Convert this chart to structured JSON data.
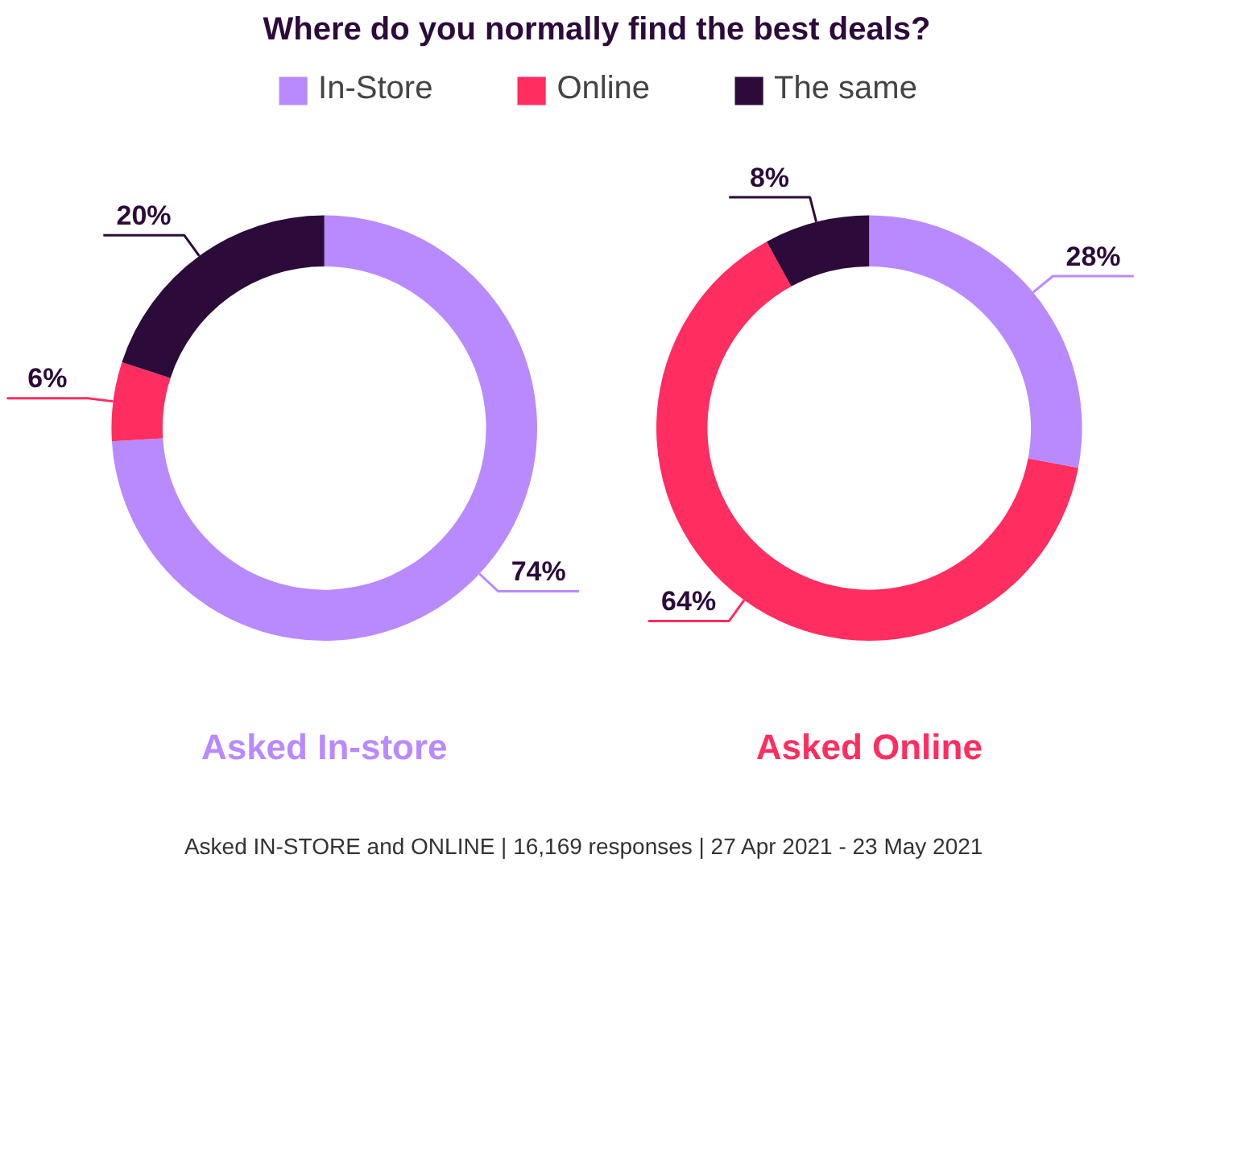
{
  "chart_data": [
    {
      "type": "donut",
      "title": "Where do you normally find the best deals?",
      "xlabel": "Asked In-store",
      "categories": [
        "In-Store",
        "Online",
        "The same"
      ],
      "values": [
        74,
        6,
        20
      ],
      "colors": [
        "#b98afe",
        "#ff2d60",
        "#2c0b3a"
      ],
      "value_labels": [
        "74%",
        "6%",
        "20%"
      ],
      "legend": "top",
      "annotations": [
        "Asked IN-STORE and ONLINE  |  16,169 responses  |  27 Apr 2021 - 23 May 2021"
      ]
    },
    {
      "type": "donut",
      "xlabel": "Asked Online",
      "categories": [
        null,
        null,
        null
      ],
      "values": [
        28,
        64,
        8
      ],
      "colors": [
        "#b98afe",
        "#ff2d60",
        "#2c0b3a"
      ],
      "value_labels": [
        "28%",
        "64%",
        "8%"
      ]
    }
  ]
}
